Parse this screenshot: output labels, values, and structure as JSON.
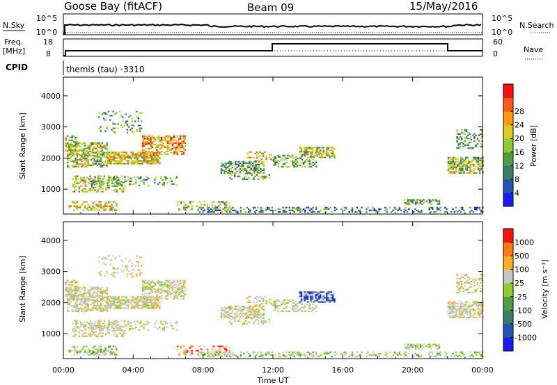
{
  "header": {
    "station": "Goose Bay (fitACF)",
    "beam": "Beam 09",
    "date": "15/May/2016"
  },
  "top_panels": {
    "nsky_label": "N.Sky",
    "nsearch_label": "N.Search",
    "noise_ticks": [
      "10^5",
      "10^0"
    ],
    "freq_label": "Freq.",
    "freq_unit": "[MHz]",
    "freq_ticks": [
      "18",
      "8"
    ],
    "nave_label": "Nave",
    "nave_ticks": [
      "60",
      "0"
    ],
    "cpid_label": "CPID",
    "cpid_text": "themis (tau) -3310"
  },
  "chart_data": [
    {
      "type": "heatmap",
      "name": "power-panel",
      "ylabel": "Slant Range [km]",
      "yticks": [
        "1000",
        "2000",
        "3000",
        "4000"
      ],
      "ylim": [
        200,
        4600
      ],
      "xlim_hours": [
        0,
        24
      ],
      "colorbar": {
        "label": "Power [dB]",
        "ticks": [
          "4",
          "8",
          "12",
          "16",
          "20",
          "24",
          "28"
        ],
        "colors": [
          "#1a1aff",
          "#2255b0",
          "#3d7a6a",
          "#4aa040",
          "#8fcc2e",
          "#e0cc1a",
          "#ff9a10",
          "#ff5a10",
          "#ff1010"
        ]
      }
    },
    {
      "type": "heatmap",
      "name": "velocity-panel",
      "ylabel": "Slant Range [km]",
      "yticks": [
        "1000",
        "2000",
        "3000",
        "4000"
      ],
      "ylim": [
        200,
        4600
      ],
      "xlim_hours": [
        0,
        24
      ],
      "colorbar": {
        "label": "Velocity [m s⁻¹]",
        "ticks": [
          "1000",
          "500",
          "100",
          "25",
          "-25",
          "-100",
          "-500",
          "-1000"
        ],
        "colors": [
          "#1a1aff",
          "#2255b0",
          "#3d7a6a",
          "#4aa040",
          "#8fcc2e",
          "#c8c8c0",
          "#ffb020",
          "#ff7a10",
          "#ff1010"
        ]
      }
    }
  ],
  "xaxis": {
    "ticks": [
      "00:00",
      "04:00",
      "08:00",
      "12:00",
      "16:00",
      "20:00",
      "00:00"
    ],
    "label": "Time UT"
  }
}
